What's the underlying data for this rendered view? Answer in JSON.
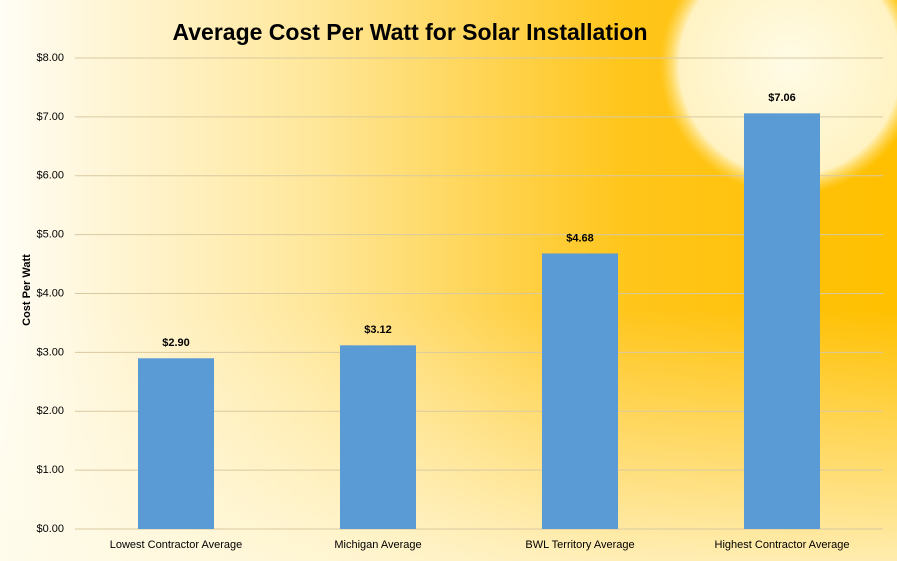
{
  "chart_data": {
    "type": "bar",
    "title": "Average Cost Per Watt for Solar Installation",
    "y_label": "Cost Per Watt",
    "categories": [
      "Lowest Contractor Average",
      "Michigan Average",
      "BWL Territory Average",
      "Highest Contractor Average"
    ],
    "values": [
      2.9,
      3.12,
      4.68,
      7.06
    ],
    "value_labels": [
      "$2.90",
      "$3.12",
      "$4.68",
      "$7.06"
    ],
    "color": "#5b9bd5",
    "ylim": [
      0,
      8
    ],
    "yticks": [
      {
        "value": 0,
        "label": "$0.00"
      },
      {
        "value": 1,
        "label": "$1.00"
      },
      {
        "value": 2,
        "label": "$2.00"
      },
      {
        "value": 3,
        "label": "$3.00"
      },
      {
        "value": 4,
        "label": "$4.00"
      },
      {
        "value": 5,
        "label": "$5.00"
      },
      {
        "value": 6,
        "label": "$6.00"
      },
      {
        "value": 7,
        "label": "$7.00"
      },
      {
        "value": 8,
        "label": "$8.00"
      }
    ],
    "grid": true
  }
}
